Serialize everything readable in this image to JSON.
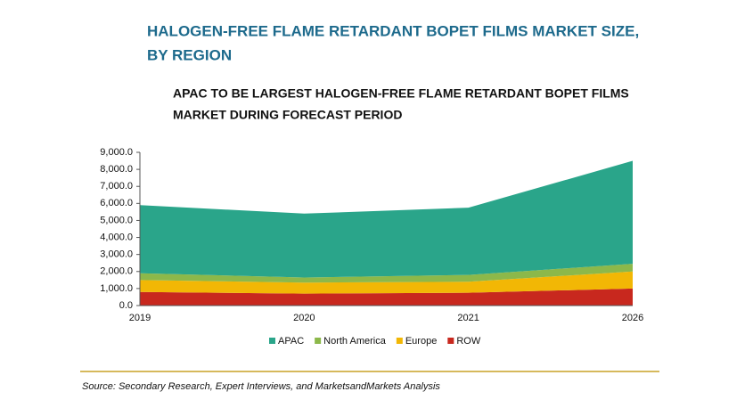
{
  "chart_data": {
    "type": "stacked_area",
    "title": [
      "HALOGEN-FREE FLAME RETARDANT BOPET FILMS MARKET SIZE,",
      "BY REGION"
    ],
    "subtitle": [
      "APAC TO BE LARGEST HALOGEN-FREE FLAME RETARDANT BOPET FILMS",
      "MARKET DURING FORECAST PERIOD"
    ],
    "categories": [
      "2019",
      "2020",
      "2021",
      "2026"
    ],
    "series": [
      {
        "name": "ROW",
        "color": "#c8281e",
        "values": [
          800,
          700,
          750,
          1000
        ]
      },
      {
        "name": "Europe",
        "color": "#f2b705",
        "values": [
          700,
          650,
          650,
          1000
        ]
      },
      {
        "name": "North America",
        "color": "#8cb84a",
        "values": [
          400,
          300,
          400,
          450
        ]
      },
      {
        "name": "APAC",
        "color": "#2aa58a",
        "values": [
          4000,
          3750,
          3950,
          6050
        ]
      }
    ],
    "legend_order": [
      3,
      2,
      1,
      0
    ],
    "ylim": [
      0,
      9000
    ],
    "yticks": [
      {
        "value": 0,
        "label": "0.0"
      },
      {
        "value": 1000,
        "label": "1,000.0"
      },
      {
        "value": 2000,
        "label": "2,000.0"
      },
      {
        "value": 3000,
        "label": "3,000.0"
      },
      {
        "value": 4000,
        "label": "4,000.0"
      },
      {
        "value": 5000,
        "label": "5,000.0"
      },
      {
        "value": 6000,
        "label": "6,000.0"
      },
      {
        "value": 7000,
        "label": "7,000.0"
      },
      {
        "value": 8000,
        "label": "8,000.0"
      },
      {
        "value": 9000,
        "label": "9,000.0"
      }
    ],
    "source": "Source: Secondary Research, Expert Interviews, and MarketsandMarkets Analysis"
  }
}
